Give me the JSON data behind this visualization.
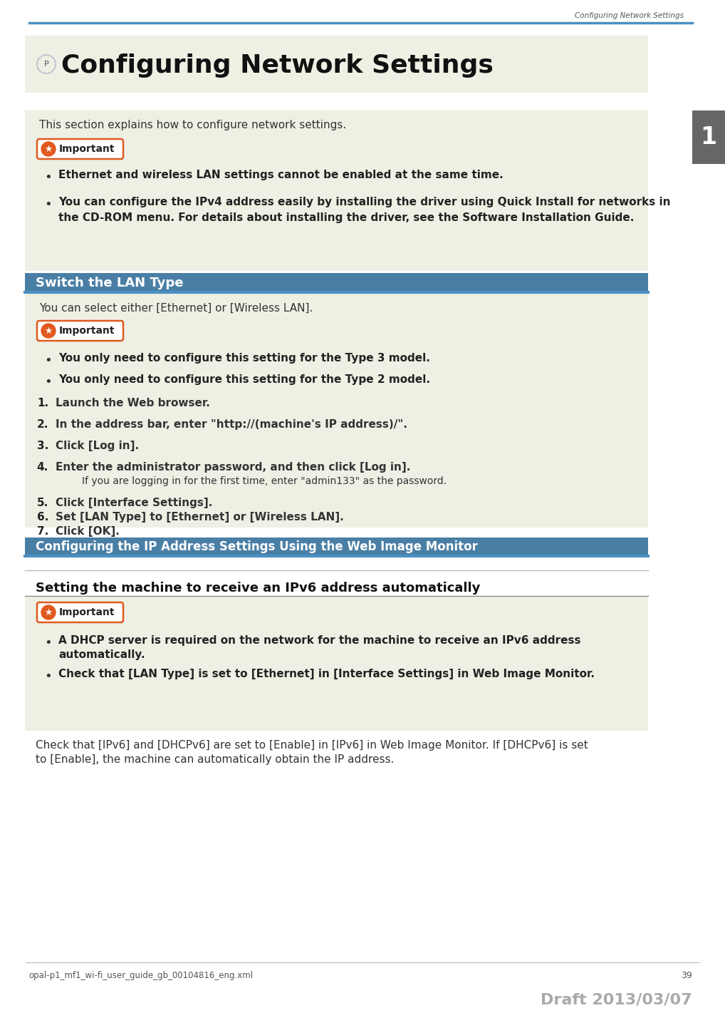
{
  "page_bg": "#ffffff",
  "content_bg": "#eef0e4",
  "header_line_color": "#4a90c4",
  "section_header_bg": "#4a7fa5",
  "tab_color": "#666666",
  "important_border_color": "#e05a20",
  "important_star_color": "#e05a20",
  "body_text_color": "#333333",
  "top_header_text": "Configuring Network Settings",
  "main_title": "Configuring Network Settings",
  "intro_text": "This section explains how to configure network settings.",
  "important_label": "Important",
  "bullet1": "Ethernet and wireless LAN settings cannot be enabled at the same time.",
  "bullet2_line1": "You can configure the IPv4 address easily by installing the driver using Quick Install for networks in",
  "bullet2_line2": "the CD-ROM menu. For details about installing the driver, see the Software Installation Guide.",
  "section1_title": "Switch the LAN Type",
  "section1_intro": "You can select either [Ethernet] or [Wireless LAN].",
  "imp2_bullet1": "You only need to configure this setting for the Type 3 model.",
  "imp2_bullet2": "You only need to configure this setting for the Type 2 model.",
  "step1": "Launch the Web browser.",
  "step2": "In the address bar, enter \"http://(machine's IP address)/\".",
  "step3": "Click [Log in].",
  "step4": "Enter the administrator password, and then click [Log in].",
  "step4b": "If you are logging in for the first time, enter \"admin133\" as the password.",
  "step5": "Click [Interface Settings].",
  "step6": "Set [LAN Type] to [Ethernet] or [Wireless LAN].",
  "step7": "Click [OK].",
  "section2_title": "Configuring the IP Address Settings Using the Web Image Monitor",
  "section3_title": "Setting the machine to receive an IPv6 address automatically",
  "imp3_bullet1a": "A DHCP server is required on the network for the machine to receive an IPv6 address",
  "imp3_bullet1b": "automatically.",
  "imp3_bullet2": "Check that [LAN Type] is set to [Ethernet] in [Interface Settings] in Web Image Monitor.",
  "final_text1": "Check that [IPv6] and [DHCPv6] are set to [Enable] in [IPv6] in Web Image Monitor. If [DHCPv6] is set",
  "final_text2": "to [Enable], the machine can automatically obtain the IP address.",
  "footer_left": "opal-p1_mf1_wi-fi_user_guide_gb_00104816_eng.xml",
  "footer_page": "39",
  "footer_draft": "Draft 2013/03/07",
  "tab_number": "1"
}
